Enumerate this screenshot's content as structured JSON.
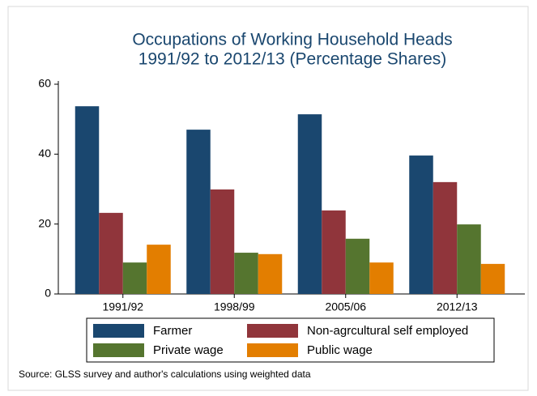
{
  "chart_data": {
    "type": "bar",
    "title": [
      "Occupations of Working Household Heads",
      "1991/92 to 2012/13 (Percentage Shares)"
    ],
    "categories": [
      "1991/92",
      "1998/99",
      "2005/06",
      "2012/13"
    ],
    "series": [
      {
        "name": "Farmer",
        "color": "#1a476f",
        "values": [
          53.7,
          47.0,
          51.4,
          39.6
        ]
      },
      {
        "name": "Non-agrcultural self employed",
        "color": "#90353b",
        "values": [
          23.2,
          29.9,
          23.9,
          32.0
        ]
      },
      {
        "name": "Private wage",
        "color": "#55752f",
        "values": [
          9.0,
          11.8,
          15.8,
          19.9
        ]
      },
      {
        "name": "Public wage",
        "color": "#e37e00",
        "values": [
          14.1,
          11.4,
          9.0,
          8.6
        ]
      }
    ],
    "ylim": [
      0,
      60
    ],
    "yticks": [
      0,
      20,
      40,
      60
    ],
    "legend": "bottom",
    "source": "Source: GLSS survey and author's calculations using weighted data"
  }
}
